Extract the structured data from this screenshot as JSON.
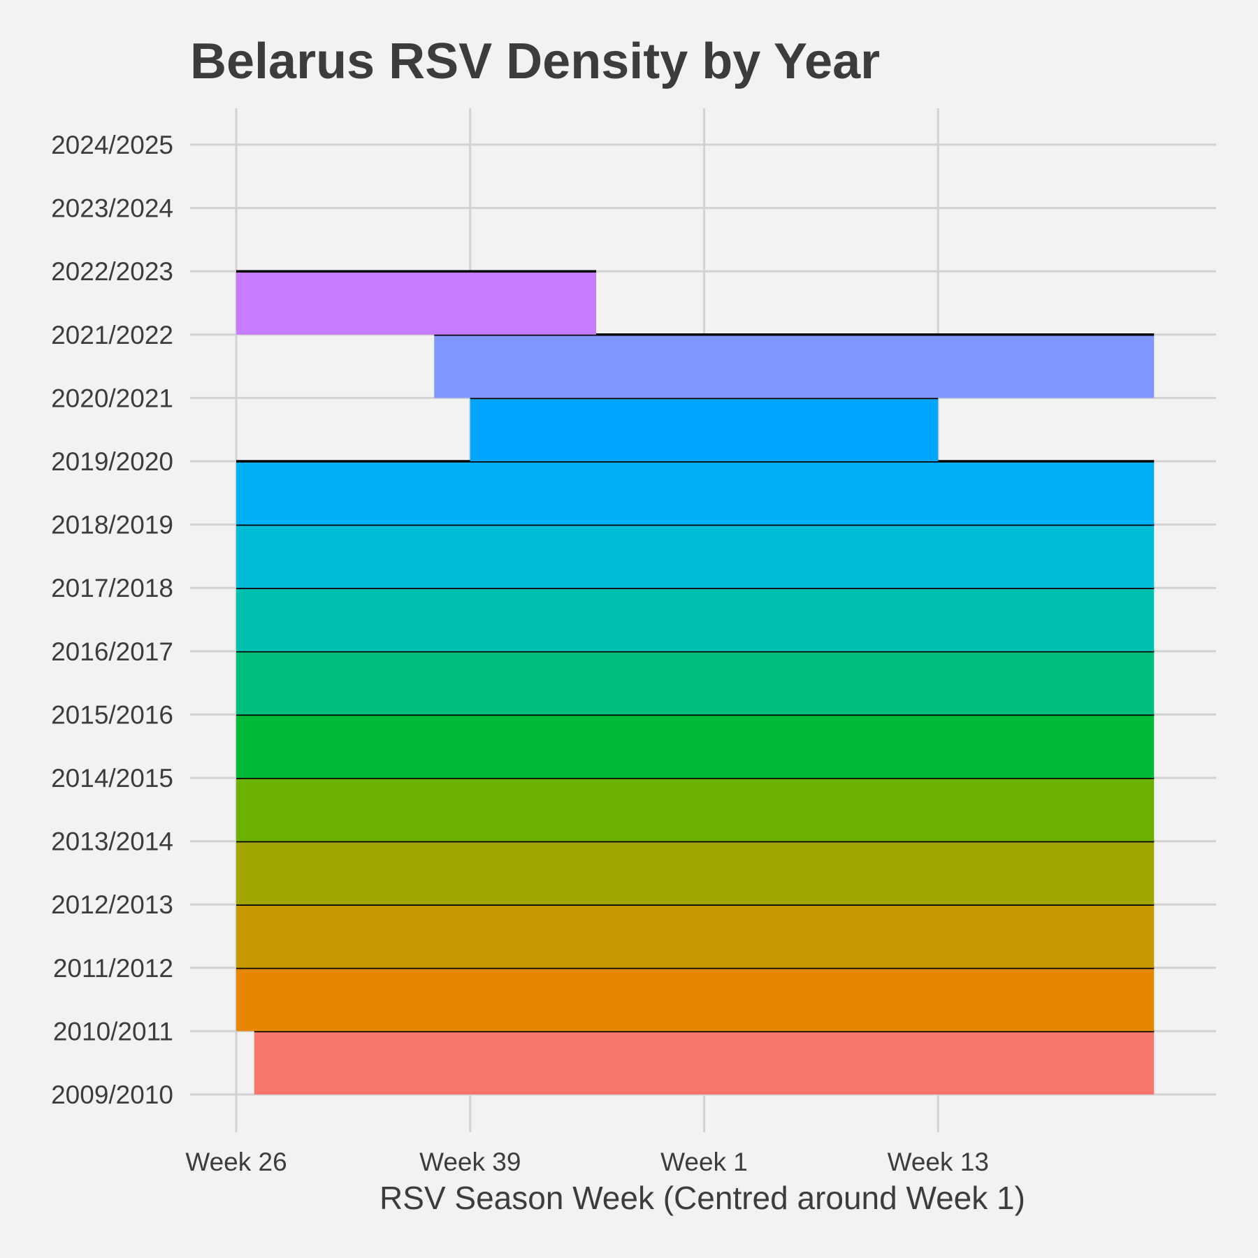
{
  "chart_data": {
    "type": "ridgeline",
    "title": "Belarus RSV Density by Year",
    "xlabel": "RSV Season Week (Centred around Week 1)",
    "ylabel": "",
    "x_ticks": [
      {
        "label": "Week 26",
        "value": 0
      },
      {
        "label": "Week 39",
        "value": 13
      },
      {
        "label": "Week 1",
        "value": 26
      },
      {
        "label": "Week 13",
        "value": 39
      }
    ],
    "xlim": [
      -2.5,
      53.5
    ],
    "grid": true,
    "categories": [
      "2009/2010",
      "2010/2011",
      "2011/2012",
      "2012/2013",
      "2013/2014",
      "2014/2015",
      "2015/2016",
      "2016/2017",
      "2017/2018",
      "2018/2019",
      "2019/2020",
      "2020/2021",
      "2021/2022",
      "2022/2023",
      "2023/2024",
      "2024/2025"
    ],
    "series": [
      {
        "year": "2009/2010",
        "start": 1,
        "end": 51,
        "color": "#F8766D"
      },
      {
        "year": "2010/2011",
        "start": 0,
        "end": 51,
        "color": "#E58700"
      },
      {
        "year": "2011/2012",
        "start": 0,
        "end": 51,
        "color": "#C99800"
      },
      {
        "year": "2012/2013",
        "start": 0,
        "end": 51,
        "color": "#A3A500"
      },
      {
        "year": "2013/2014",
        "start": 0,
        "end": 51,
        "color": "#6BB100"
      },
      {
        "year": "2014/2015",
        "start": 0,
        "end": 51,
        "color": "#00BA38"
      },
      {
        "year": "2015/2016",
        "start": 0,
        "end": 51,
        "color": "#00BF7D"
      },
      {
        "year": "2016/2017",
        "start": 0,
        "end": 51,
        "color": "#00C0AF"
      },
      {
        "year": "2017/2018",
        "start": 0,
        "end": 51,
        "color": "#00BCD8"
      },
      {
        "year": "2018/2019",
        "start": 0,
        "end": 51,
        "color": "#00B0F6"
      },
      {
        "year": "2019/2020",
        "start": 13,
        "end": 39,
        "color": "#00A5FF"
      },
      {
        "year": "2020/2021",
        "start": 11,
        "end": 51,
        "color": "#7F96FF"
      },
      {
        "year": "2021/2022",
        "start": 0,
        "end": 20,
        "color": "#C77CFF"
      },
      {
        "year": "2022/2023",
        "start": null,
        "end": null,
        "color": "#E76BF3"
      },
      {
        "year": "2023/2024",
        "start": null,
        "end": null,
        "color": "#FF61CC"
      },
      {
        "year": "2024/2025",
        "start": null,
        "end": null,
        "color": "#FF67A4"
      }
    ]
  }
}
